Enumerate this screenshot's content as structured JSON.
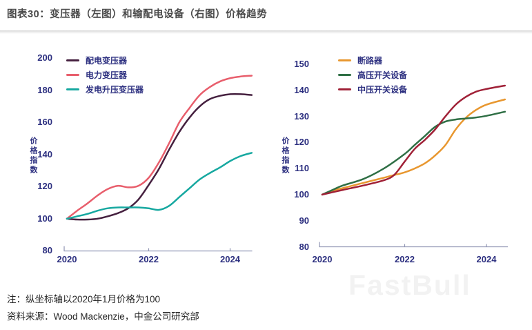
{
  "title": "图表30：变压器（左图）和输配电设备（右图）价格趋势",
  "footer": {
    "note": "注：纵坐标轴以2020年1月价格为100",
    "source": "资料来源：Wood Mackenzie，中金公司研究部"
  },
  "watermark": "FastBull",
  "colors": {
    "axis_text": "#2d3080",
    "axis_line": "#8e93b2",
    "title_text": "#4a4a4a",
    "note_text": "#262626",
    "watermark": "#f2f2f2"
  },
  "chart_data": [
    {
      "id": "transformer-price-index",
      "type": "line",
      "position": "left",
      "ylabel": "价格指数",
      "x_tick_labels": [
        "2020",
        "2022",
        "2024"
      ],
      "y_tick_labels": [
        "200",
        "180",
        "160",
        "140",
        "120",
        "100",
        "80"
      ],
      "ylim": [
        80,
        200
      ],
      "xlim": [
        2020,
        2024.6
      ],
      "grid": false,
      "legend_position": "top-left",
      "series": [
        {
          "name": "配电变压器",
          "color": "#45203f",
          "points": [
            [
              2020,
              100
            ],
            [
              2020.25,
              99.5
            ],
            [
              2020.5,
              99.5
            ],
            [
              2020.75,
              100
            ],
            [
              2021,
              101.5
            ],
            [
              2021.25,
              103.5
            ],
            [
              2021.5,
              106.5
            ],
            [
              2021.75,
              112
            ],
            [
              2022,
              121
            ],
            [
              2022.25,
              131
            ],
            [
              2022.5,
              143
            ],
            [
              2022.75,
              154
            ],
            [
              2023,
              163
            ],
            [
              2023.25,
              170
            ],
            [
              2023.5,
              174.5
            ],
            [
              2023.75,
              176.5
            ],
            [
              2024,
              177.5
            ],
            [
              2024.25,
              177.5
            ],
            [
              2024.52,
              177
            ]
          ]
        },
        {
          "name": "电力变压器",
          "color": "#e85e6c",
          "points": [
            [
              2020,
              100
            ],
            [
              2020.25,
              105
            ],
            [
              2020.5,
              109.5
            ],
            [
              2020.75,
              114.5
            ],
            [
              2021,
              118.5
            ],
            [
              2021.25,
              120.5
            ],
            [
              2021.5,
              119.5
            ],
            [
              2021.75,
              120.5
            ],
            [
              2022,
              125.5
            ],
            [
              2022.25,
              135
            ],
            [
              2022.5,
              147
            ],
            [
              2022.75,
              160
            ],
            [
              2023,
              169
            ],
            [
              2023.25,
              177
            ],
            [
              2023.5,
              182
            ],
            [
              2023.75,
              185.5
            ],
            [
              2024,
              187.5
            ],
            [
              2024.25,
              188.5
            ],
            [
              2024.52,
              189
            ]
          ]
        },
        {
          "name": "发电升压变压器",
          "color": "#16a8a0",
          "points": [
            [
              2020,
              100
            ],
            [
              2020.25,
              101.5
            ],
            [
              2020.5,
              103
            ],
            [
              2020.75,
              105
            ],
            [
              2021,
              106.5
            ],
            [
              2021.25,
              107
            ],
            [
              2021.5,
              107
            ],
            [
              2021.75,
              107
            ],
            [
              2022,
              106.5
            ],
            [
              2022.25,
              105.5
            ],
            [
              2022.5,
              108
            ],
            [
              2022.75,
              113.5
            ],
            [
              2023,
              119
            ],
            [
              2023.25,
              124.5
            ],
            [
              2023.5,
              128.5
            ],
            [
              2023.75,
              132
            ],
            [
              2024,
              136
            ],
            [
              2024.25,
              139
            ],
            [
              2024.52,
              141
            ]
          ]
        }
      ]
    },
    {
      "id": "t-and-d-equipment-price-index",
      "type": "line",
      "position": "right",
      "ylabel": "价格指数",
      "x_tick_labels": [
        "2020",
        "2022",
        "2024"
      ],
      "y_tick_labels": [
        "150",
        "140",
        "130",
        "120",
        "110",
        "100",
        "90",
        "80"
      ],
      "ylim": [
        80,
        150
      ],
      "xlim": [
        2020,
        2024.6
      ],
      "grid": false,
      "legend_position": "top-left",
      "series": [
        {
          "name": "断路器",
          "color": "#e8972f",
          "points": [
            [
              2020,
              100
            ],
            [
              2020.25,
              101.5
            ],
            [
              2020.5,
              102.5
            ],
            [
              2021,
              104.5
            ],
            [
              2021.5,
              106.5
            ],
            [
              2021.75,
              107.5
            ],
            [
              2022,
              108.5
            ],
            [
              2022.25,
              110
            ],
            [
              2022.5,
              112
            ],
            [
              2022.75,
              115
            ],
            [
              2023,
              119
            ],
            [
              2023.25,
              125
            ],
            [
              2023.5,
              129.5
            ],
            [
              2023.75,
              132.5
            ],
            [
              2024,
              134.5
            ],
            [
              2024.45,
              136.5
            ]
          ]
        },
        {
          "name": "高压开关设备",
          "color": "#2f6f45",
          "points": [
            [
              2020,
              100
            ],
            [
              2020.25,
              101.8
            ],
            [
              2020.5,
              103.5
            ],
            [
              2021,
              106
            ],
            [
              2021.5,
              110
            ],
            [
              2022,
              115.5
            ],
            [
              2022.25,
              119
            ],
            [
              2022.5,
              122.5
            ],
            [
              2022.75,
              126
            ],
            [
              2023,
              128
            ],
            [
              2023.25,
              128.8
            ],
            [
              2023.5,
              129.2
            ],
            [
              2023.75,
              129.6
            ],
            [
              2024,
              130.2
            ],
            [
              2024.45,
              131.8
            ]
          ]
        },
        {
          "name": "中压开关设备",
          "color": "#a02137",
          "points": [
            [
              2020,
              100
            ],
            [
              2020.5,
              101.8
            ],
            [
              2021,
              103.5
            ],
            [
              2021.5,
              105.5
            ],
            [
              2021.75,
              107.5
            ],
            [
              2022,
              112.5
            ],
            [
              2022.25,
              117.5
            ],
            [
              2022.5,
              121
            ],
            [
              2022.75,
              125
            ],
            [
              2023,
              130
            ],
            [
              2023.25,
              134.5
            ],
            [
              2023.5,
              137.5
            ],
            [
              2023.75,
              139.5
            ],
            [
              2024,
              140.5
            ],
            [
              2024.45,
              141.8
            ]
          ]
        }
      ]
    }
  ]
}
